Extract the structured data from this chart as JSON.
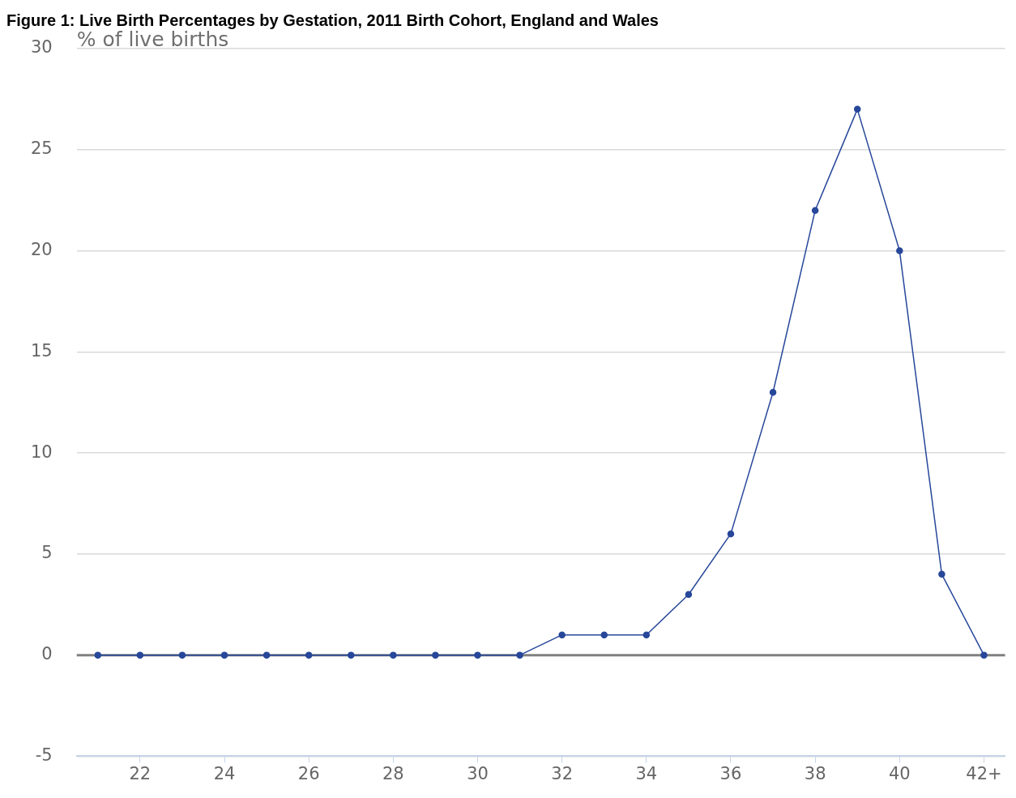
{
  "chart_data": {
    "type": "line",
    "title": "Figure 1: Live Birth Percentages by Gestation, 2011 Birth Cohort, England and Wales",
    "ylabel": "% of live births",
    "categories": [
      null,
      "22",
      null,
      "24",
      null,
      "26",
      null,
      "28",
      null,
      "30",
      null,
      "32",
      null,
      "34",
      null,
      "36",
      null,
      "38",
      null,
      "40",
      null,
      "42+"
    ],
    "series": [
      {
        "color": "#27479a",
        "values": [
          0,
          0,
          0,
          0,
          0,
          0,
          0,
          0,
          0,
          0,
          0,
          1,
          1,
          1,
          3,
          6,
          13,
          22,
          27,
          20,
          4,
          0
        ]
      }
    ],
    "ylim": [
      -5,
      30
    ],
    "yticks": [
      -5,
      0,
      5,
      10,
      15,
      20,
      25,
      30
    ],
    "grid": "y",
    "legend": false,
    "marker": "circle",
    "line_style": "solid",
    "ref_lines": [
      {
        "axis": "y",
        "value": 0,
        "color": "#808080"
      }
    ]
  }
}
